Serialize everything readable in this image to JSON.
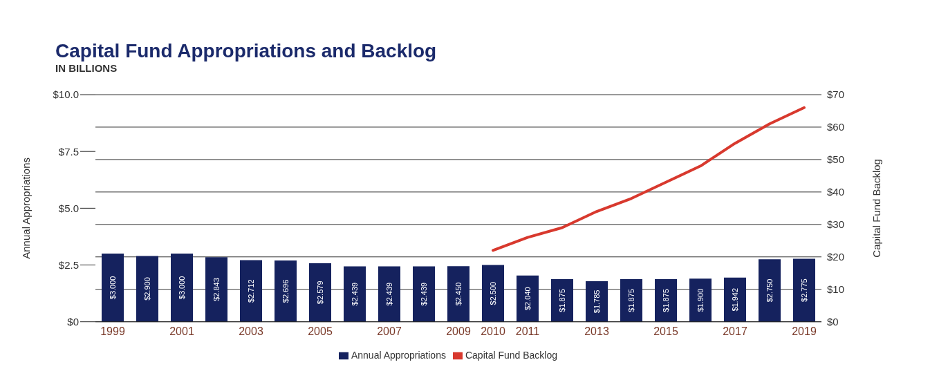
{
  "chart_data": {
    "type": "bar",
    "title": "Capital Fund Appropriations and Backlog",
    "subtitle": "IN BILLIONS",
    "ylabel": "Annual Appropriations",
    "y2label": "Capital Fund Backlog",
    "categories": [
      "1999",
      null,
      "2001",
      null,
      "2003",
      null,
      "2005",
      null,
      "2007",
      null,
      "2009",
      "2010",
      "2011",
      null,
      "2013",
      null,
      "2015",
      null,
      "2017",
      null,
      "2019"
    ],
    "series": [
      {
        "name": "Annual Appropriations",
        "color": "#15225e",
        "values": [
          3.0,
          2.9,
          3.0,
          2.843,
          2.712,
          2.696,
          2.579,
          2.439,
          2.439,
          2.439,
          2.45,
          2.5,
          2.04,
          1.875,
          1.785,
          1.875,
          1.875,
          1.9,
          1.942,
          2.75,
          2.775
        ],
        "value_labels": [
          "$3.000",
          "$2.900",
          "$3.000",
          "$2.843",
          "$2.712",
          "$2.696",
          "$2.579",
          "$2.439",
          "$2.439",
          "$2.439",
          "$2.450",
          "$2.500",
          "$2.040",
          "$1.875",
          "$1.785",
          "$1.875",
          "$1.875",
          "$1.900",
          "$1.942",
          "$2.750",
          "$2.775"
        ]
      },
      {
        "name": "Capital Fund Backlog",
        "type": "line",
        "axis": "y2",
        "color": "#d8392e",
        "values": [
          null,
          null,
          null,
          null,
          null,
          null,
          null,
          null,
          null,
          null,
          null,
          22,
          26,
          29,
          34,
          38,
          43,
          48,
          55,
          61,
          66
        ]
      }
    ],
    "ylim": [
      0,
      10
    ],
    "yticks": [
      {
        "value": 0,
        "label": "$0"
      },
      {
        "value": 2.5,
        "label": "$2.5"
      },
      {
        "value": 5,
        "label": "$5.0"
      },
      {
        "value": 7.5,
        "label": "$7.5"
      },
      {
        "value": 10,
        "label": "$10.0"
      }
    ],
    "y2lim": [
      0,
      70
    ],
    "y2ticks": [
      {
        "value": 0,
        "label": "$0"
      },
      {
        "value": 10,
        "label": "$10"
      },
      {
        "value": 20,
        "label": "$20"
      },
      {
        "value": 30,
        "label": "$30"
      },
      {
        "value": 40,
        "label": "$40"
      },
      {
        "value": 50,
        "label": "$50"
      },
      {
        "value": 60,
        "label": "$60"
      },
      {
        "value": 70,
        "label": "$70"
      }
    ],
    "grid": "y",
    "legend": "bottom",
    "marker": "none"
  }
}
